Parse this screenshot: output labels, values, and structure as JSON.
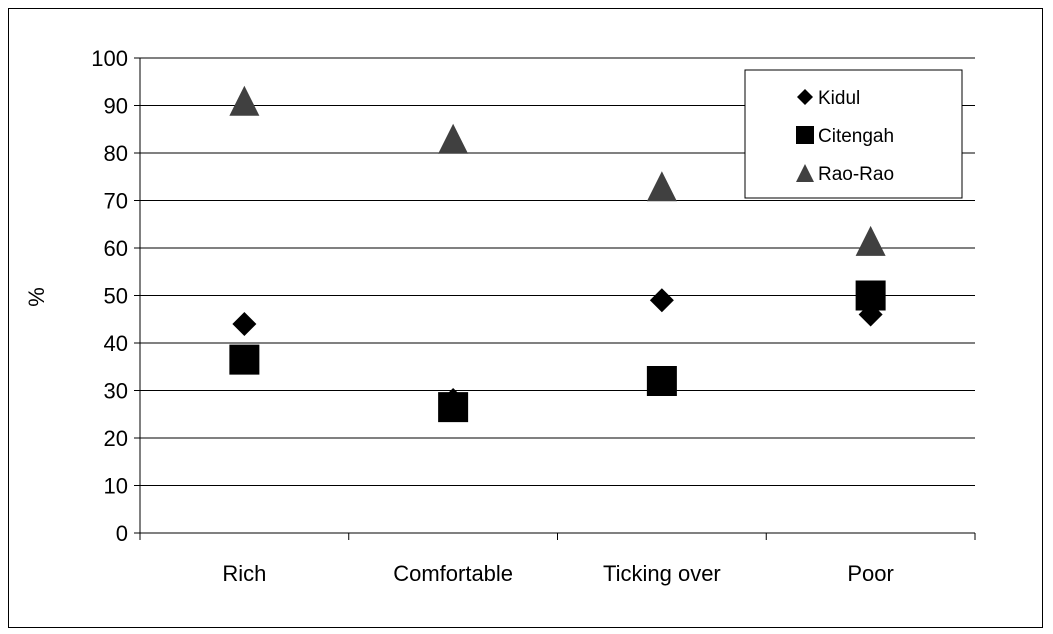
{
  "chart_data": {
    "type": "scatter",
    "title": "",
    "xlabel": "",
    "ylabel": "%",
    "categories": [
      "Rich",
      "Comfortable",
      "Ticking over",
      "Poor"
    ],
    "ylim": [
      0,
      100
    ],
    "yticks": [
      0,
      10,
      20,
      30,
      40,
      50,
      60,
      70,
      80,
      90,
      100
    ],
    "grid": true,
    "legend_position": "top-right",
    "series": [
      {
        "name": "Kidul",
        "marker": "diamond",
        "color": "#000000",
        "values": [
          44,
          28,
          49,
          46
        ]
      },
      {
        "name": "Citengah",
        "marker": "square",
        "color": "#000000",
        "values": [
          36.5,
          26.5,
          32,
          50
        ]
      },
      {
        "name": "Rao-Rao",
        "marker": "triangle",
        "color": "#404040",
        "values": [
          91,
          83,
          73,
          61.5
        ]
      }
    ]
  }
}
